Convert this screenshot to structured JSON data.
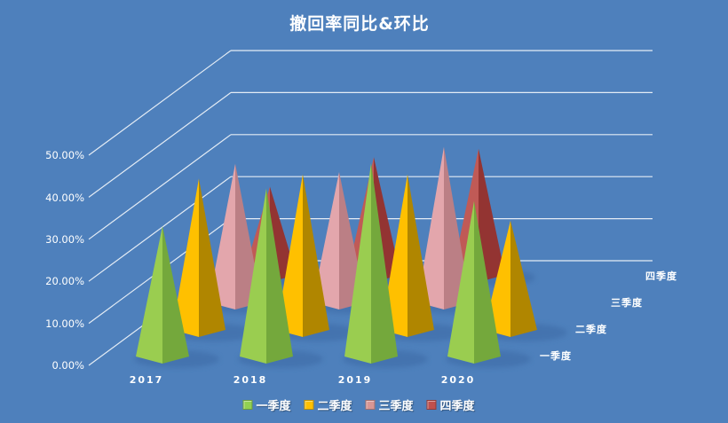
{
  "title": "撤回率同比&环比",
  "chart_data": {
    "type": "bar",
    "subtype": "3d-pyramid",
    "title": "撤回率同比&环比",
    "categories": [
      "2017",
      "2018",
      "2019",
      "2020"
    ],
    "series": [
      {
        "name": "一季度",
        "color": "#92D050",
        "values": [
          31,
          40,
          46,
          37
        ]
      },
      {
        "name": "二季度",
        "color": "#FFC000",
        "values": [
          36,
          37,
          37,
          26
        ]
      },
      {
        "name": "三季度",
        "color": "#D99694",
        "values": [
          33,
          31,
          37,
          null
        ]
      },
      {
        "name": "四季度",
        "color": "#C0504D",
        "values": [
          21,
          28,
          30,
          null
        ]
      }
    ],
    "value_axis": {
      "unit": "percent",
      "min": 0,
      "max": 50,
      "tick_step": 10,
      "ticks": [
        "0.00%",
        "10.00%",
        "20.00%",
        "30.00%",
        "40.00%",
        "50.00%"
      ]
    },
    "depth_axis_labels": [
      "一季度",
      "二季度",
      "三季度",
      "四季度"
    ],
    "legend": {
      "position": "bottom",
      "items": [
        "一季度",
        "二季度",
        "三季度",
        "四季度"
      ]
    },
    "grid": true
  },
  "colors": {
    "background": "#4E80BC",
    "gridline": "#FFFFFF",
    "text": "#FFFFFF",
    "shadow": "#3A67A3",
    "series_faces": [
      {
        "light": "#9ACD50",
        "dark": "#74A83C"
      },
      {
        "light": "#FFC000",
        "dark": "#B08600"
      },
      {
        "light": "#E3A6AC",
        "dark": "#BB7F85"
      },
      {
        "light": "#C05A56",
        "dark": "#933432"
      }
    ]
  }
}
